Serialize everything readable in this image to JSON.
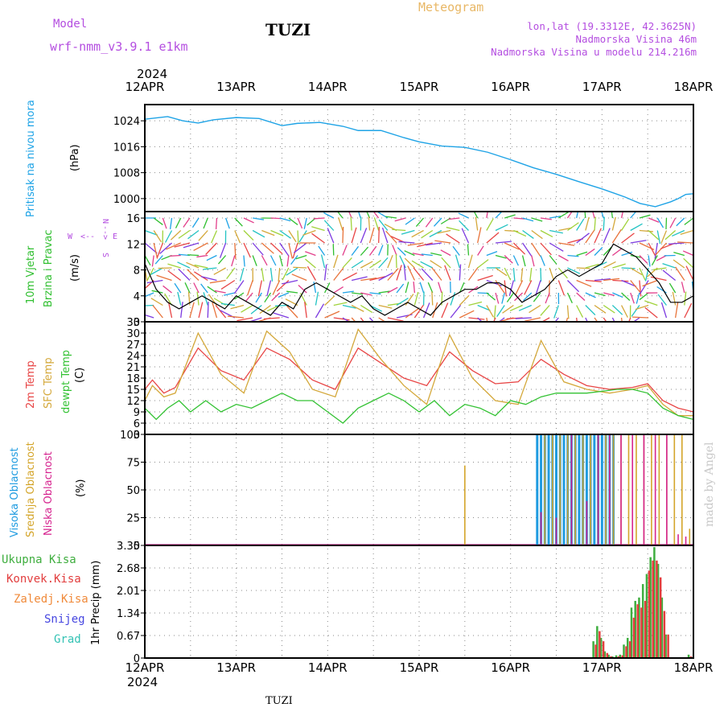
{
  "header": {
    "model_label": "Model",
    "model_name": "wrf-nmm_v3.9.1 e1km",
    "station": "TUZI",
    "product": "Meteogram",
    "lonlat": "lon,lat (19.3312E, 42.3625N)",
    "elevation": "Nadmorska Visina 46m",
    "model_elevation": "Nadmorska Visina u modelu 214.216m",
    "year_top": "2024",
    "year_bottom": "2024",
    "footer_station": "TUZI",
    "watermark": "made by Angel"
  },
  "colors": {
    "pressure": "#1ea3e6",
    "temp2m": "#e84545",
    "sfc": "#d4a83a",
    "dewpt": "#33c233",
    "cloud_high": "#1e9be0",
    "cloud_mid": "#d4a52a",
    "cloud_low": "#d6248f",
    "precip_total": "#3fae3f",
    "precip_conv": "#e23d3d",
    "precip_frozen": "#f08a3a",
    "snow": "#4646e0",
    "hail": "#33c2b4",
    "wind_label": "#2fbf2f",
    "purple": "#b44ee0"
  },
  "x_axis": {
    "ticks": [
      "12APR",
      "13APR",
      "14APR",
      "15APR",
      "16APR",
      "17APR",
      "18APR"
    ]
  },
  "panels": {
    "pressure": {
      "label": "Pritisak na nivou mora",
      "unit": "(hPa)",
      "yticks": [
        "1000",
        "1008",
        "1016",
        "1024"
      ]
    },
    "wind": {
      "label1": "10m Vjetar",
      "label2": "Brzina i Pravac",
      "unit": "(m/s)",
      "yticks": [
        "0",
        "4",
        "8",
        "12",
        "16"
      ],
      "compass_n": "N",
      "compass_s": "S",
      "compass_w": "W",
      "compass_e": "E",
      "compass_arrows_h": "<--",
      "compass_arrows_v": "-->"
    },
    "temp": {
      "label1": "2m Temp",
      "label2": "SFC Temp",
      "label3": "dewpt Temp",
      "unit": "(C)",
      "yticks": [
        "3",
        "6",
        "9",
        "12",
        "15",
        "18",
        "21",
        "24",
        "27",
        "30",
        "33"
      ]
    },
    "cloud": {
      "label1": "Visoka Oblacnost",
      "label2": "Srednja Oblacnost",
      "label3": "Niska Oblacnost",
      "unit": "(%)",
      "yticks": [
        "0",
        "25",
        "50",
        "75",
        "100"
      ]
    },
    "precip": {
      "label1": "Ukupna Kisa",
      "label2": "Konvek.Kisa",
      "label3": "Zaledj.Kisa",
      "label4": "Snijeg",
      "label5": "Grad",
      "unit": "1hr Precip (mm)",
      "yticks": [
        "0",
        "0.67",
        "1.34",
        "2.01",
        "2.68",
        "3.35"
      ]
    }
  },
  "chart_data": [
    {
      "type": "line",
      "title": "Pritisak na nivou mora",
      "ylabel": "(hPa)",
      "xlim_hours": [
        0,
        144
      ],
      "ylim": [
        996,
        1029
      ],
      "series": [
        {
          "name": "Pritisak na nivou mora",
          "x": [
            0,
            6,
            10,
            14,
            18,
            24,
            30,
            36,
            40,
            46,
            52,
            56,
            62,
            68,
            72,
            78,
            84,
            90,
            96,
            102,
            108,
            114,
            120,
            126,
            130,
            134,
            138,
            140,
            142,
            144
          ],
          "y": [
            1024.5,
            1025.3,
            1024.0,
            1023.3,
            1024.3,
            1025.0,
            1024.7,
            1022.5,
            1023.2,
            1023.5,
            1022.3,
            1021.0,
            1021.0,
            1018.8,
            1017.5,
            1016.2,
            1015.8,
            1014.3,
            1012.0,
            1009.5,
            1007.5,
            1005.2,
            1003.0,
            1000.5,
            998.5,
            997.5,
            999.0,
            1000.0,
            1001.3,
            1001.5
          ]
        }
      ]
    },
    {
      "type": "line",
      "title": "10m Vjetar Brzina i Pravac",
      "ylabel": "(m/s)",
      "xlim_hours": [
        0,
        144
      ],
      "ylim": [
        0,
        17
      ],
      "series": [
        {
          "name": "10m Vjetar",
          "x": [
            0,
            3,
            6,
            9,
            12,
            15,
            18,
            21,
            24,
            27,
            30,
            33,
            36,
            39,
            42,
            45,
            48,
            51,
            54,
            57,
            60,
            63,
            66,
            69,
            72,
            75,
            78,
            81,
            84,
            87,
            90,
            93,
            96,
            99,
            102,
            105,
            108,
            111,
            114,
            117,
            120,
            123,
            126,
            129,
            132,
            135,
            138,
            141,
            144
          ],
          "y": [
            9,
            5,
            3,
            2,
            3,
            4,
            3,
            2,
            4,
            3,
            2,
            1,
            3,
            2,
            5,
            6,
            5,
            4,
            3,
            4,
            2,
            1,
            2,
            3,
            2,
            1,
            3,
            4,
            5,
            5,
            6,
            6,
            5,
            3,
            4,
            5,
            7,
            8,
            7,
            8,
            9,
            12,
            11,
            10,
            8,
            6,
            3,
            3,
            4
          ]
        }
      ]
    },
    {
      "type": "line",
      "title": "Temperature",
      "ylabel": "(C)",
      "xlim_hours": [
        0,
        144
      ],
      "ylim": [
        3,
        33
      ],
      "series": [
        {
          "name": "2m Temp",
          "x": [
            0,
            2,
            5,
            8,
            14,
            20,
            26,
            32,
            38,
            44,
            50,
            56,
            62,
            68,
            74,
            80,
            86,
            92,
            98,
            104,
            110,
            116,
            122,
            128,
            132,
            136,
            140,
            144
          ],
          "y": [
            15,
            17.5,
            14,
            15.5,
            26,
            20,
            17.5,
            26,
            23,
            17.5,
            15,
            26,
            22,
            18,
            16,
            25,
            20,
            16.5,
            17,
            23,
            19,
            16,
            15,
            15.5,
            16.5,
            12,
            10,
            9
          ]
        },
        {
          "name": "SFC Temp",
          "x": [
            0,
            2,
            5,
            8,
            14,
            20,
            26,
            32,
            38,
            44,
            50,
            56,
            62,
            68,
            74,
            80,
            86,
            92,
            98,
            104,
            110,
            116,
            122,
            128,
            132,
            136,
            140,
            144
          ],
          "y": [
            12,
            16,
            13,
            14,
            30,
            19,
            14,
            30.5,
            25,
            15,
            13,
            31,
            23,
            16,
            11,
            29.5,
            18,
            12,
            11,
            28,
            17,
            15,
            14,
            15,
            16,
            11,
            8,
            8
          ]
        },
        {
          "name": "dewpt Temp",
          "x": [
            0,
            3,
            6,
            9,
            12,
            16,
            20,
            24,
            28,
            32,
            36,
            40,
            44,
            48,
            52,
            56,
            60,
            64,
            68,
            72,
            76,
            80,
            84,
            88,
            92,
            96,
            100,
            104,
            108,
            112,
            116,
            120,
            124,
            128,
            132,
            136,
            140,
            144
          ],
          "y": [
            10,
            7,
            10,
            12,
            9,
            12,
            9,
            11,
            10,
            12,
            14,
            12,
            12,
            9,
            6,
            10,
            12,
            14,
            12,
            9,
            12,
            8,
            11,
            10,
            8,
            12,
            11,
            13,
            14,
            14,
            14,
            14.5,
            15,
            15,
            14,
            10,
            8,
            7
          ]
        }
      ]
    },
    {
      "type": "bar",
      "title": "Oblacnost",
      "ylabel": "(%)",
      "xlim_hours": [
        0,
        144
      ],
      "ylim": [
        0,
        100
      ],
      "series": [
        {
          "name": "Visoka Oblacnost",
          "x": [
            103,
            104,
            105,
            106,
            107,
            108,
            109,
            110,
            111,
            112,
            113,
            114,
            115,
            116,
            117,
            118,
            119,
            120,
            121,
            122,
            123
          ],
          "values": [
            100,
            100,
            100,
            100,
            100,
            100,
            100,
            100,
            100,
            100,
            100,
            100,
            100,
            100,
            100,
            100,
            100,
            100,
            100,
            100,
            100
          ]
        },
        {
          "name": "Srednja Oblacnost",
          "x": [
            84,
            105,
            107,
            109,
            111,
            113,
            115,
            117,
            119,
            121,
            123,
            125,
            127,
            129,
            131,
            133,
            135,
            137,
            139,
            141,
            143
          ],
          "values": [
            72,
            100,
            100,
            100,
            100,
            100,
            100,
            100,
            100,
            100,
            100,
            100,
            100,
            100,
            100,
            100,
            100,
            100,
            100,
            100,
            15
          ]
        },
        {
          "name": "Niska Oblacnost",
          "x": [
            104,
            108,
            112,
            116,
            119,
            122,
            125,
            128,
            131,
            134,
            137,
            140,
            142
          ],
          "values": [
            30,
            25,
            100,
            40,
            100,
            100,
            100,
            100,
            100,
            100,
            100,
            10,
            8
          ]
        }
      ]
    },
    {
      "type": "bar",
      "title": "1hr Precip",
      "ylabel": "1hr Precip (mm)",
      "xlim_hours": [
        0,
        144
      ],
      "ylim": [
        0,
        3.35
      ],
      "series": [
        {
          "name": "Ukupna Kisa",
          "x": [
            118,
            119,
            120,
            121,
            122,
            123,
            124,
            125,
            126,
            127,
            128,
            129,
            130,
            131,
            132,
            133,
            134,
            135,
            136,
            137,
            138,
            143
          ],
          "values": [
            0.5,
            0.95,
            0.6,
            0.2,
            0.1,
            0.05,
            0.08,
            0.1,
            0.4,
            0.6,
            1.5,
            1.7,
            1.8,
            2.2,
            2.5,
            3.0,
            3.3,
            2.8,
            1.8,
            0.7,
            0.0,
            0.1
          ]
        },
        {
          "name": "Konvek.Kisa",
          "x": [
            118,
            119,
            120,
            121,
            122,
            123,
            124,
            125,
            126,
            127,
            128,
            129,
            130,
            131,
            132,
            133,
            134,
            135,
            136,
            137,
            138,
            143
          ],
          "values": [
            0.4,
            0.8,
            0.5,
            0.15,
            0.05,
            0.02,
            0.05,
            0.08,
            0.35,
            0.5,
            1.2,
            1.6,
            1.5,
            1.7,
            2.6,
            2.9,
            2.9,
            2.4,
            1.4,
            0.7,
            0.0,
            0.05
          ]
        }
      ]
    }
  ]
}
